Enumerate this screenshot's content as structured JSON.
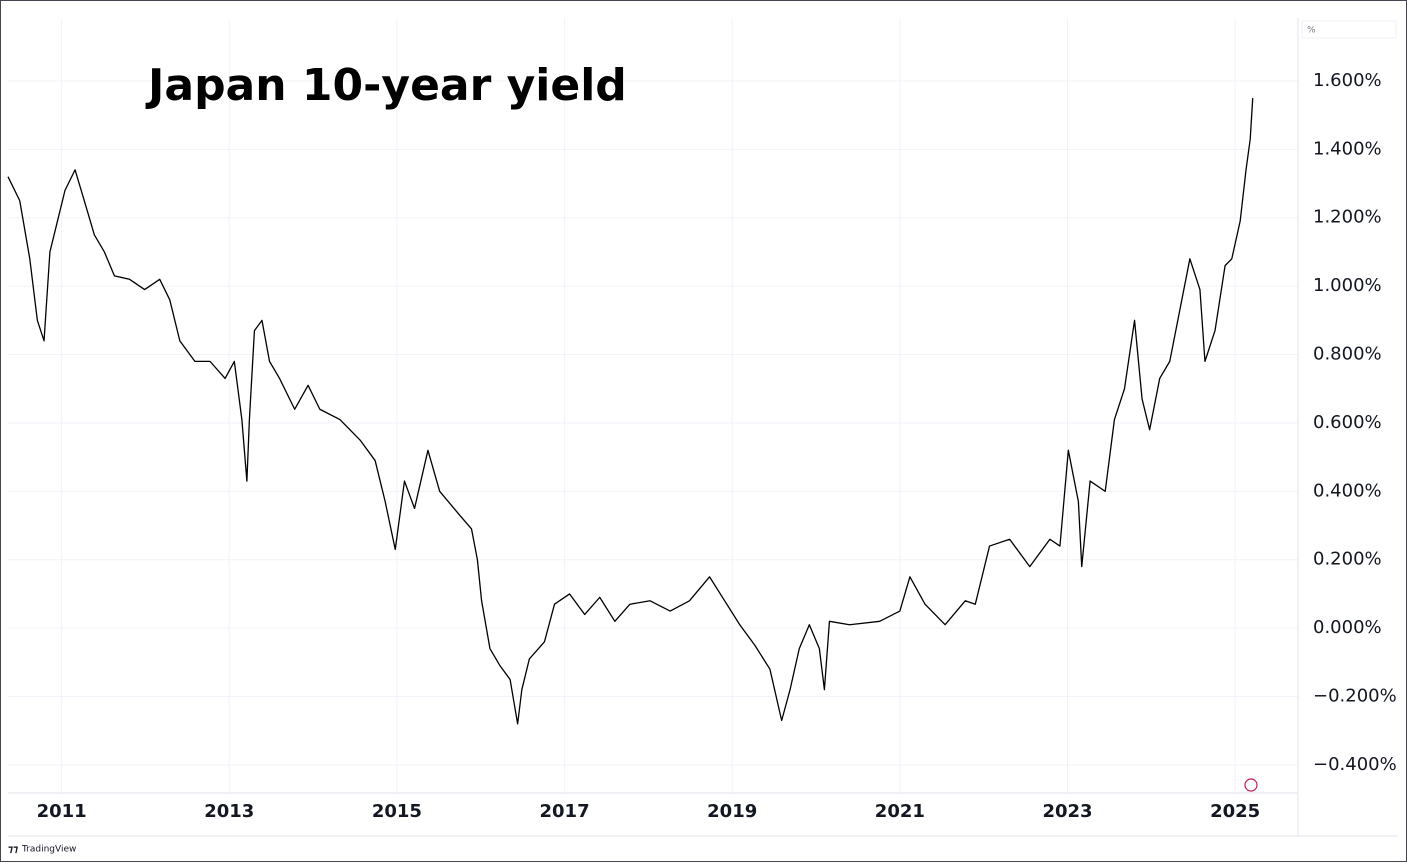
{
  "chart_data": {
    "type": "line",
    "title": "Japan 10-year yield",
    "y_axis_label": "%",
    "source": "TradingView",
    "x": [
      2010.36,
      2010.5,
      2010.62,
      2010.71,
      2010.79,
      2010.86,
      2010.95,
      2011.04,
      2011.16,
      2011.27,
      2011.39,
      2011.51,
      2011.63,
      2011.81,
      2011.99,
      2012.17,
      2012.29,
      2012.41,
      2012.59,
      2012.77,
      2012.95,
      2013.06,
      2013.15,
      2013.21,
      2013.24,
      2013.3,
      2013.39,
      2013.48,
      2013.6,
      2013.78,
      2013.94,
      2014.08,
      2014.32,
      2014.56,
      2014.74,
      2014.86,
      2014.98,
      2015.09,
      2015.21,
      2015.37,
      2015.51,
      2015.75,
      2015.89,
      2015.96,
      2016.01,
      2016.11,
      2016.23,
      2016.35,
      2016.44,
      2016.49,
      2016.58,
      2016.76,
      2016.88,
      2017.06,
      2017.24,
      2017.42,
      2017.6,
      2017.78,
      2018.02,
      2018.26,
      2018.49,
      2018.73,
      2018.91,
      2019.09,
      2019.27,
      2019.45,
      2019.59,
      2019.69,
      2019.8,
      2019.92,
      2020.04,
      2020.1,
      2020.16,
      2020.4,
      2020.76,
      2021.0,
      2021.12,
      2021.3,
      2021.54,
      2021.78,
      2021.9,
      2022.07,
      2022.31,
      2022.55,
      2022.79,
      2022.91,
      2023.01,
      2023.13,
      2023.17,
      2023.27,
      2023.45,
      2023.56,
      2023.68,
      2023.8,
      2023.89,
      2023.98,
      2024.1,
      2024.22,
      2024.34,
      2024.46,
      2024.58,
      2024.64,
      2024.76,
      2024.88,
      2024.96,
      2025.06,
      2025.13,
      2025.18,
      2025.21
    ],
    "series": [
      {
        "name": "Japan 10-year yield",
        "color": "#000000",
        "values": [
          1.32,
          1.25,
          1.08,
          0.9,
          0.84,
          1.1,
          1.19,
          1.28,
          1.34,
          1.25,
          1.15,
          1.1,
          1.03,
          1.02,
          0.99,
          1.02,
          0.96,
          0.84,
          0.78,
          0.78,
          0.73,
          0.78,
          0.61,
          0.43,
          0.61,
          0.87,
          0.9,
          0.78,
          0.73,
          0.64,
          0.71,
          0.64,
          0.61,
          0.55,
          0.49,
          0.37,
          0.23,
          0.43,
          0.35,
          0.52,
          0.4,
          0.33,
          0.29,
          0.2,
          0.08,
          -0.06,
          -0.11,
          -0.15,
          -0.28,
          -0.18,
          -0.09,
          -0.04,
          0.07,
          0.1,
          0.04,
          0.09,
          0.02,
          0.07,
          0.08,
          0.05,
          0.08,
          0.15,
          0.08,
          0.01,
          -0.05,
          -0.12,
          -0.27,
          -0.18,
          -0.06,
          0.01,
          -0.06,
          -0.18,
          0.02,
          0.01,
          0.02,
          0.05,
          0.15,
          0.07,
          0.01,
          0.08,
          0.07,
          0.24,
          0.26,
          0.18,
          0.26,
          0.24,
          0.52,
          0.37,
          0.18,
          0.43,
          0.4,
          0.61,
          0.7,
          0.9,
          0.67,
          0.58,
          0.73,
          0.78,
          0.93,
          1.08,
          0.99,
          0.78,
          0.87,
          1.06,
          1.08,
          1.19,
          1.34,
          1.43,
          1.55
        ]
      }
    ],
    "xlim": [
      2010.36,
      2025.75
    ],
    "xticks": [
      2011,
      2013,
      2015,
      2017,
      2019,
      2021,
      2023,
      2025
    ],
    "ylim": [
      -0.482,
      1.784
    ],
    "yticks": [
      {
        "value": -0.4,
        "label": "−0.400%"
      },
      {
        "value": -0.2,
        "label": "−0.200%"
      },
      {
        "value": 0,
        "label": "0.000%"
      },
      {
        "value": 0.2,
        "label": "0.200%"
      },
      {
        "value": 0.4,
        "label": "0.400%"
      },
      {
        "value": 0.6,
        "label": "0.600%"
      },
      {
        "value": 0.8,
        "label": "0.800%"
      },
      {
        "value": 1.0,
        "label": "1.000%"
      },
      {
        "value": 1.2,
        "label": "1.200%"
      },
      {
        "value": 1.4,
        "label": "1.400%"
      },
      {
        "value": 1.6,
        "label": "1.600%"
      }
    ],
    "grid": true
  }
}
